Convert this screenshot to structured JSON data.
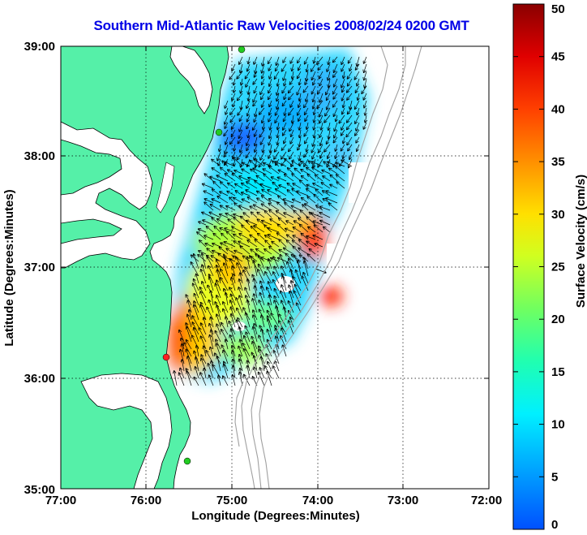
{
  "title": "Southern Mid-Atlantic Raw Velocities 2008/02/24 0200 GMT",
  "xlabel": "Longitude (Degrees:Minutes)",
  "ylabel": "Latitude (Degrees:Minutes)",
  "x_ticks": [
    "77:00",
    "76:00",
    "75:00",
    "74:00",
    "73:00",
    "72:00"
  ],
  "y_ticks": [
    "39:00",
    "38:00",
    "37:00",
    "36:00",
    "35:00"
  ],
  "colorbar": {
    "label": "Surface Velocity (cm/s)",
    "min": 0,
    "max": 50,
    "ticks": [
      "0",
      "5",
      "10",
      "15",
      "20",
      "25",
      "30",
      "35",
      "40",
      "45",
      "50"
    ]
  },
  "colors": {
    "land": "#55f0a8",
    "title": "#0000e6",
    "isobath": "#a0a0a0",
    "site_marker": "#22cc22",
    "site_marker_alert": "#ff2020"
  },
  "chart_data": {
    "type": "heatmap",
    "lon_range": [
      -77,
      -72
    ],
    "lat_range": [
      35,
      39
    ],
    "grid": "dotted",
    "legend": "colorbar-right"
  }
}
